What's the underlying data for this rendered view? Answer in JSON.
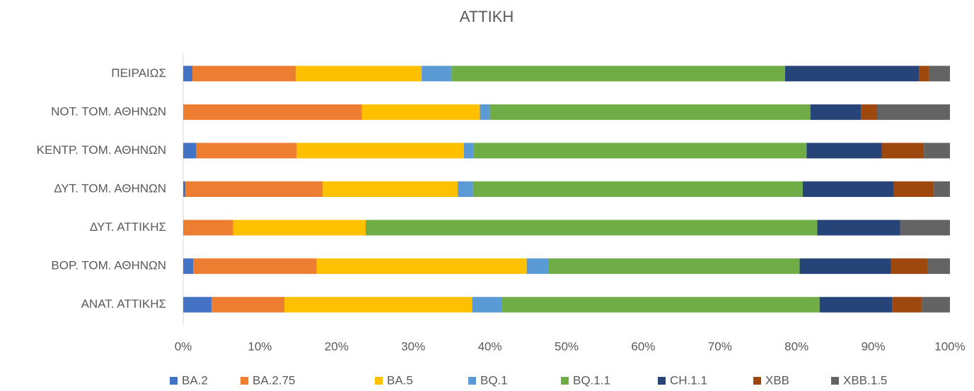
{
  "chart_data": {
    "type": "stacked_bar_100_horizontal",
    "title": "ΑΤΤΙΚΗ",
    "categories": [
      "ΠΕΙΡΑΙΩΣ",
      "ΝΟΤ. ΤΟΜ. ΑΘΗΝΩΝ",
      "ΚΕΝΤΡ. ΤΟΜ. ΑΘΗΝΩΝ",
      "ΔΥΤ. ΤΟΜ. ΑΘΗΝΩΝ",
      "ΔΥΤ. ΑΤΤΙΚΗΣ",
      "ΒΟΡ. ΤΟΜ. ΑΘΗΝΩΝ",
      "ΑΝΑΤ. ΑΤΤΙΚΗΣ"
    ],
    "series": [
      {
        "name": "BA.2",
        "color": "#4472c4",
        "values": [
          1.2,
          0,
          1.7,
          0.3,
          0,
          1.3,
          3.7
        ]
      },
      {
        "name": "BA.2.75",
        "color": "#ed7d31",
        "values": [
          13.5,
          23.3,
          13.1,
          17.9,
          6.5,
          16.1,
          9.5
        ]
      },
      {
        "name": "BA.5",
        "color": "#ffc000",
        "values": [
          16.4,
          15.4,
          21.8,
          17.6,
          17.3,
          27.4,
          24.5
        ]
      },
      {
        "name": "BQ.1",
        "color": "#5b9bd5",
        "values": [
          3.9,
          1.3,
          1.3,
          2.0,
          0,
          2.8,
          3.9
        ]
      },
      {
        "name": "BQ.1.1",
        "color": "#70ad47",
        "values": [
          43.5,
          41.8,
          43.4,
          43.0,
          58.9,
          32.8,
          41.4
        ]
      },
      {
        "name": "CH.1.1",
        "color": "#264478",
        "values": [
          17.5,
          6.6,
          9.8,
          11.9,
          10.8,
          11.9,
          9.5
        ]
      },
      {
        "name": "XBB",
        "color": "#9e480e",
        "values": [
          1.3,
          2.1,
          5.5,
          5.2,
          0,
          4.8,
          3.8
        ]
      },
      {
        "name": "XBB.1.5",
        "color": "#636363",
        "values": [
          2.7,
          9.5,
          3.4,
          2.1,
          6.5,
          2.9,
          3.7
        ]
      }
    ],
    "xlim": [
      0,
      100
    ],
    "xticks": [
      {
        "value": 0,
        "label": "0%"
      },
      {
        "value": 10,
        "label": "10%"
      },
      {
        "value": 20,
        "label": "20%"
      },
      {
        "value": 30,
        "label": "30%"
      },
      {
        "value": 40,
        "label": "40%"
      },
      {
        "value": 50,
        "label": "50%"
      },
      {
        "value": 60,
        "label": "60%"
      },
      {
        "value": 70,
        "label": "70%"
      },
      {
        "value": 80,
        "label": "80%"
      },
      {
        "value": 90,
        "label": "90%"
      },
      {
        "value": 100,
        "label": "100%"
      }
    ],
    "grid": false,
    "legend": "bottom"
  }
}
